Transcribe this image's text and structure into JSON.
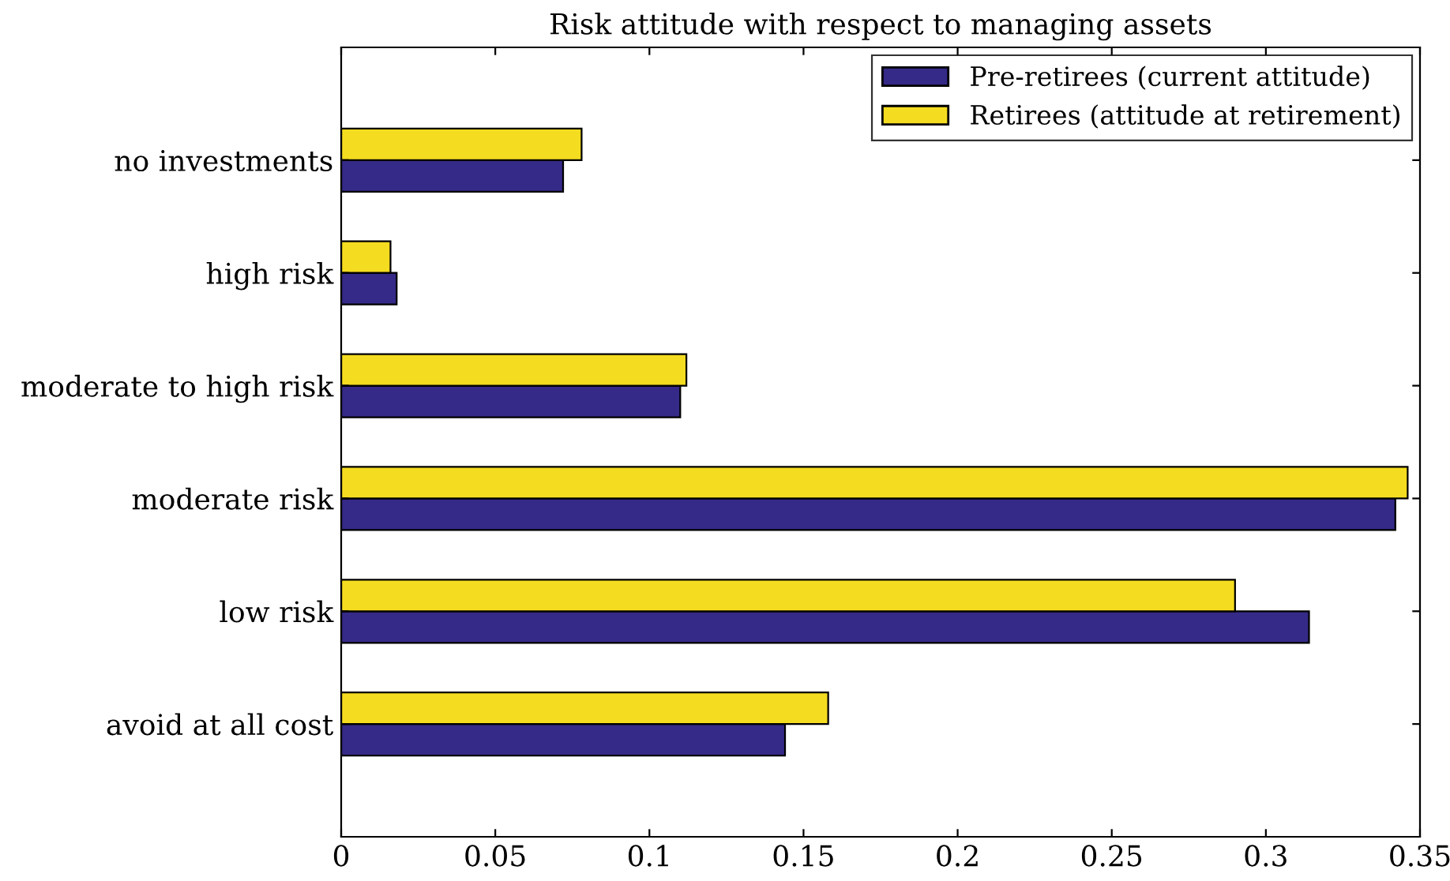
{
  "chart_data": {
    "type": "bar",
    "orientation": "horizontal",
    "title": "Risk attitude with respect to managing assets",
    "categories": [
      "no investments",
      "high risk",
      "moderate to high risk",
      "moderate risk",
      "low risk",
      "avoid at all cost"
    ],
    "series": [
      {
        "name": "Pre-retirees (current attitude)",
        "color": "#352a87",
        "values": [
          0.072,
          0.018,
          0.11,
          0.342,
          0.314,
          0.144
        ]
      },
      {
        "name": "Retirees (attitude at retirement)",
        "color": "#f4dc20",
        "values": [
          0.078,
          0.016,
          0.112,
          0.346,
          0.29,
          0.158
        ]
      }
    ],
    "xlim": [
      0,
      0.35
    ],
    "xticks": [
      0,
      0.05,
      0.1,
      0.15,
      0.2,
      0.25,
      0.3,
      0.35
    ],
    "grid": false,
    "legend": "top right"
  }
}
